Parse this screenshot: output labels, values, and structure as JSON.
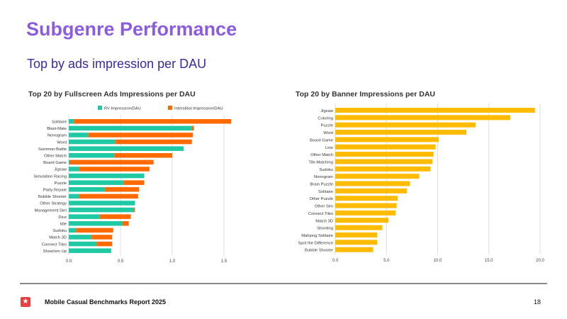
{
  "title": "Subgenre Performance",
  "subtitle": "Top by ads impression per DAU",
  "footer": {
    "report": "Mobile Casual Benchmarks Report 2025",
    "page": "18",
    "logo_icon": "star-icon"
  },
  "colors": {
    "title": "#8c5ce0",
    "rv": "#1fc9a4",
    "interstitial": "#ff6a00",
    "banner": "#ffbb00"
  },
  "chart_data": [
    {
      "type": "bar",
      "stacked": true,
      "orientation": "horizontal",
      "title": "Top 20 by Fullscreen Ads Impressions per DAU",
      "legend_position": "top",
      "xlim": [
        0,
        1.5
      ],
      "xticks": [
        "0.0",
        "0.5",
        "1.0",
        "1.5"
      ],
      "xtick_values": [
        0,
        0.5,
        1.0,
        1.5
      ],
      "categories": [
        "Solitaire",
        "Blast-Mate",
        "Nonogram",
        "Word",
        "Summon-Battle",
        "Other Match",
        "Board Game",
        "Jigsaw",
        "Simulation Racing",
        "Puzzle",
        "Party Royale",
        "Bubble Shooter",
        "Other Strategy",
        "Management Sim",
        "Dice",
        "Idle",
        "Sudoku",
        "Match 3D",
        "Connect Tiles",
        "Shoot'em Up"
      ],
      "series": [
        {
          "name": "RV Impression/DAU",
          "values": [
            0.05,
            1.19,
            0.19,
            0.45,
            1.11,
            0.44,
            0.01,
            0.1,
            0.73,
            0.53,
            0.35,
            0.1,
            0.64,
            0.63,
            0.3,
            0.52,
            0.07,
            0.22,
            0.27,
            0.41
          ]
        },
        {
          "name": "Interstitial Impression/DAU",
          "values": [
            1.52,
            0.02,
            1.01,
            0.74,
            0,
            0.56,
            0.81,
            0.68,
            0,
            0.2,
            0.33,
            0.57,
            0,
            0.01,
            0.3,
            0.06,
            0.36,
            0.2,
            0.15,
            0
          ]
        }
      ]
    },
    {
      "type": "bar",
      "orientation": "horizontal",
      "title": "Top 20 by Banner Impressions per DAU",
      "xlim": [
        0,
        20
      ],
      "xticks": [
        "0.0",
        "5.0",
        "10.0",
        "15.0",
        "20.0"
      ],
      "xtick_values": [
        0,
        5,
        10,
        15,
        20
      ],
      "categories": [
        "Jigsaw",
        "Coloring",
        "Puzzle",
        "Word",
        "Board Game",
        "Line",
        "Other Match",
        "Tile-Matching",
        "Sudoku",
        "Nonogram",
        "Brain Puzzle",
        "Solitaire",
        "Other Puzzle",
        "Other Sim",
        "Connect Tiles",
        "Match 3D",
        "Shooting",
        "Mahjong Solitaire",
        "Spot the Difference",
        "Bubble Shooter"
      ],
      "series": [
        {
          "name": "Banner Impressions/DAU",
          "values": [
            19.5,
            17.1,
            13.7,
            12.8,
            10.1,
            9.8,
            9.6,
            9.5,
            9.3,
            8.2,
            7.3,
            7.0,
            6.1,
            6.0,
            5.9,
            5.2,
            4.6,
            4.1,
            4.1,
            3.7
          ]
        }
      ]
    }
  ]
}
